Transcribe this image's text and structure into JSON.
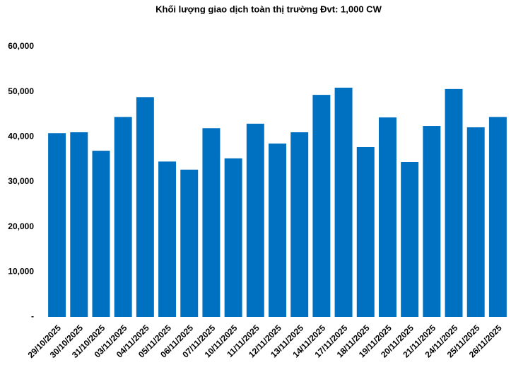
{
  "chart_data": {
    "type": "bar",
    "title": "Khối lượng giao dịch toàn thị trường Đvt: 1,000 CW",
    "categories": [
      "29/10/2025",
      "30/10/2025",
      "31/10/2025",
      "03/11/2025",
      "04/11/2025",
      "05/11/2025",
      "06/11/2025",
      "07/11/2025",
      "10/11/2025",
      "11/11/2025",
      "12/11/2025",
      "13/11/2025",
      "14/11/2025",
      "17/11/2025",
      "18/11/2025",
      "19/11/2025",
      "20/11/2025",
      "21/11/2025",
      "24/11/2025",
      "25/11/2025",
      "26/11/2025"
    ],
    "values": [
      40800,
      41000,
      36900,
      44400,
      48800,
      34500,
      32700,
      41900,
      35200,
      42900,
      38500,
      41000,
      49300,
      50900,
      37700,
      44300,
      34400,
      42400,
      50600,
      42100,
      44400
    ],
    "color": "#0070c0",
    "ylim": [
      0,
      60000
    ],
    "yticks": [
      {
        "value": 0,
        "label": "-"
      },
      {
        "value": 10000,
        "label": "10,000"
      },
      {
        "value": 20000,
        "label": "20,000"
      },
      {
        "value": 30000,
        "label": "30,000"
      },
      {
        "value": 40000,
        "label": "40,000"
      },
      {
        "value": 50000,
        "label": "50,000"
      },
      {
        "value": 60000,
        "label": "60,000"
      }
    ],
    "grid": false
  }
}
